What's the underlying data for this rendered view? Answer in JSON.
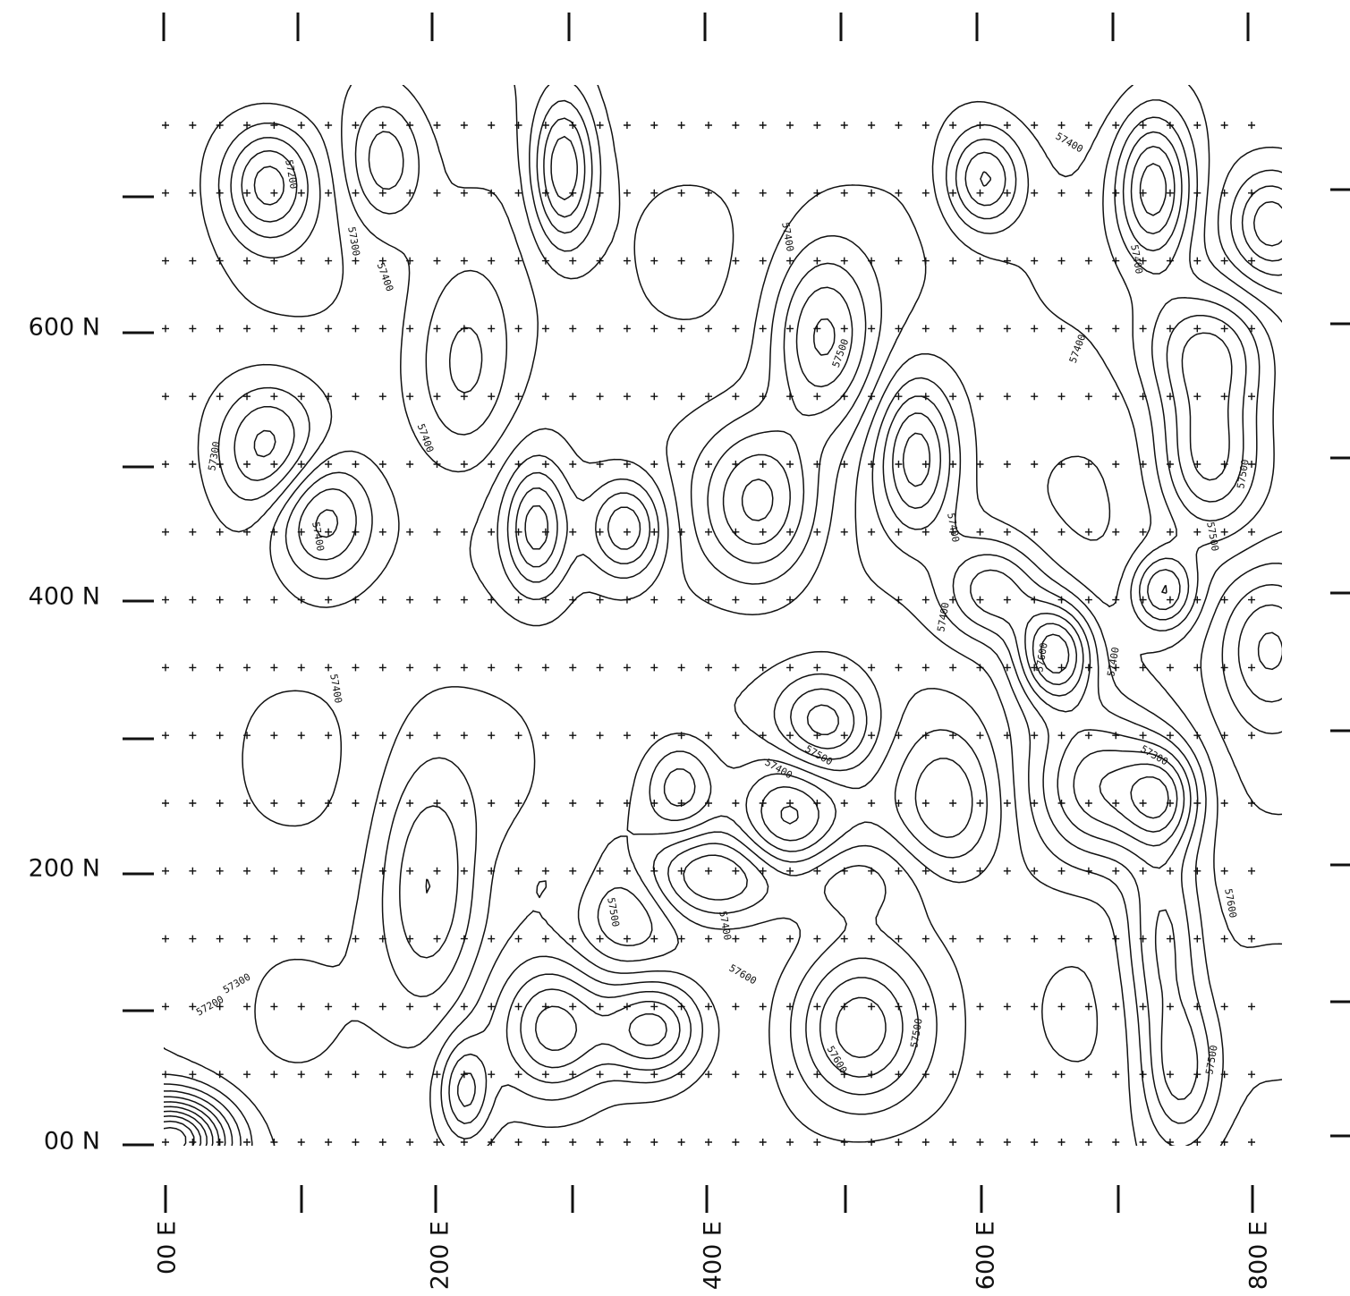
{
  "axes": {
    "y_labels": [
      "600 N",
      "400 N",
      "200 N",
      "00 N"
    ],
    "x_labels": [
      "00 E",
      "200 E",
      "400 E",
      "600 E",
      "800 E"
    ]
  },
  "contour_labels": [
    "57200",
    "57300",
    "57400",
    "57300",
    "57400",
    "57400",
    "57400",
    "57300",
    "57200",
    "57500",
    "57400",
    "57600",
    "57400",
    "57500",
    "57500",
    "57400",
    "57400",
    "57400",
    "57400",
    "57400",
    "57400",
    "57300",
    "57600",
    "57500",
    "57600",
    "57500",
    "57500",
    "57500",
    "57400",
    "57600"
  ]
}
